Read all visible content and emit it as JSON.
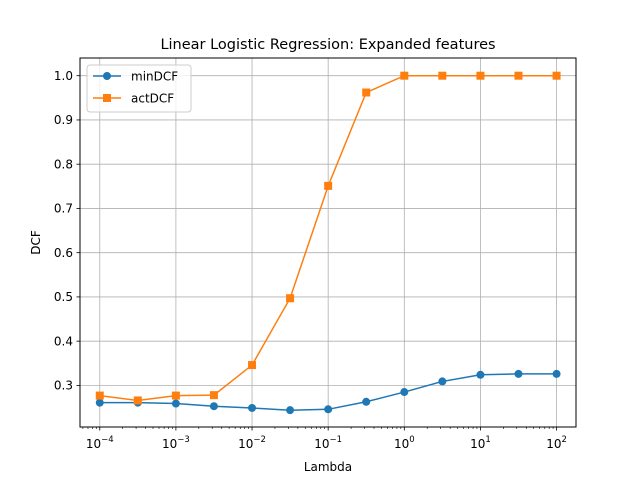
{
  "chart_data": {
    "type": "line",
    "title": "Linear Logistic Regression: Expanded features",
    "xlabel": "Lambda",
    "ylabel": "DCF",
    "xscale": "log",
    "x": [
      0.0001,
      0.000316,
      0.001,
      0.00316,
      0.01,
      0.0316,
      0.1,
      0.316,
      1,
      3.16,
      10,
      31.6,
      100
    ],
    "series": [
      {
        "name": "minDCF",
        "color": "#1f77b4",
        "marker": "circle",
        "values": [
          0.261,
          0.261,
          0.259,
          0.253,
          0.249,
          0.244,
          0.246,
          0.263,
          0.285,
          0.309,
          0.324,
          0.326,
          0.326
        ]
      },
      {
        "name": "actDCF",
        "color": "#ff7f0e",
        "marker": "square",
        "values": [
          0.277,
          0.266,
          0.277,
          0.278,
          0.346,
          0.497,
          0.751,
          0.962,
          1.0,
          1.0,
          1.0,
          1.0,
          1.0
        ]
      }
    ],
    "xlim": [
      5.5e-05,
      180
    ],
    "ylim": [
      0.206,
      1.04
    ],
    "yticks": [
      "0.3",
      "0.4",
      "0.5",
      "0.6",
      "0.7",
      "0.8",
      "0.9",
      "1.0"
    ],
    "ytick_values": [
      0.3,
      0.4,
      0.5,
      0.6,
      0.7,
      0.8,
      0.9,
      1.0
    ],
    "xtick_exponents": [
      "−4",
      "−3",
      "−2",
      "−1",
      "0",
      "1",
      "2"
    ],
    "xtick_values": [
      0.0001,
      0.001,
      0.01,
      0.1,
      1,
      10,
      100
    ],
    "grid": true,
    "legend_position": "top-left"
  }
}
